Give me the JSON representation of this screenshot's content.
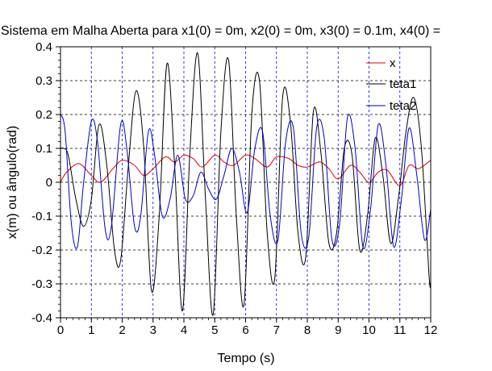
{
  "chart_data": {
    "type": "line",
    "title": "Sistema em Malha Aberta para x1(0) = 0m, x2(0) = 0m, x3(0) = 0.1m, x4(0) =",
    "xlabel": "Tempo (s)",
    "ylabel": "x(m) ou ângulo(rad)",
    "xlim": [
      0,
      12
    ],
    "ylim": [
      -0.4,
      0.4
    ],
    "xticks": [
      "0",
      "1",
      "2",
      "3",
      "4",
      "5",
      "6",
      "7",
      "8",
      "9",
      "10",
      "11",
      "12"
    ],
    "yticks": [
      "0.4",
      "0.3",
      "0.2",
      "0.1",
      "0",
      "-0.1",
      "-0.2",
      "-0.3",
      "-0.4"
    ],
    "grid": true,
    "legend_position": "top-right",
    "series": [
      {
        "name": "x",
        "color": "#dd0000",
        "points": [
          [
            0,
            0
          ],
          [
            0.2,
            0.03
          ],
          [
            0.6,
            0.055
          ],
          [
            1.0,
            0.02
          ],
          [
            1.3,
            0.0
          ],
          [
            1.7,
            0.04
          ],
          [
            2.0,
            0.065
          ],
          [
            2.4,
            0.05
          ],
          [
            2.7,
            0.02
          ],
          [
            3.0,
            0.04
          ],
          [
            3.4,
            0.075
          ],
          [
            3.7,
            0.06
          ],
          [
            4.0,
            0.08
          ],
          [
            4.3,
            0.07
          ],
          [
            4.6,
            0.045
          ],
          [
            5.0,
            0.08
          ],
          [
            5.3,
            0.06
          ],
          [
            5.6,
            0.05
          ],
          [
            6.0,
            0.08
          ],
          [
            6.3,
            0.07
          ],
          [
            6.7,
            0.045
          ],
          [
            7.0,
            0.075
          ],
          [
            7.4,
            0.07
          ],
          [
            7.7,
            0.05
          ],
          [
            8.0,
            0.045
          ],
          [
            8.4,
            0.06
          ],
          [
            8.7,
            0.04
          ],
          [
            9.0,
            0.01
          ],
          [
            9.4,
            0.05
          ],
          [
            9.7,
            0.03
          ],
          [
            10.0,
            0.0
          ],
          [
            10.3,
            0.03
          ],
          [
            10.6,
            0.035
          ],
          [
            11.0,
            -0.01
          ],
          [
            11.3,
            0.05
          ],
          [
            11.6,
            0.04
          ],
          [
            12.0,
            0.065
          ]
        ]
      },
      {
        "name": "teta1",
        "color": "#000000",
        "points": [
          [
            0,
            0.1
          ],
          [
            0.1,
            0.1
          ],
          [
            0.25,
            0.08
          ],
          [
            0.5,
            -0.05
          ],
          [
            0.75,
            -0.13
          ],
          [
            1.0,
            -0.05
          ],
          [
            1.25,
            0.17
          ],
          [
            1.5,
            0.05
          ],
          [
            1.75,
            -0.2
          ],
          [
            1.95,
            -0.23
          ],
          [
            2.2,
            0.05
          ],
          [
            2.45,
            0.27
          ],
          [
            2.7,
            0.1
          ],
          [
            2.95,
            -0.32
          ],
          [
            3.2,
            -0.1
          ],
          [
            3.45,
            0.35
          ],
          [
            3.7,
            0.05
          ],
          [
            3.95,
            -0.38
          ],
          [
            4.2,
            0.1
          ],
          [
            4.45,
            0.38
          ],
          [
            4.7,
            -0.05
          ],
          [
            4.95,
            -0.39
          ],
          [
            5.2,
            0.15
          ],
          [
            5.45,
            0.36
          ],
          [
            5.7,
            -0.1
          ],
          [
            5.95,
            -0.36
          ],
          [
            6.2,
            0.2
          ],
          [
            6.45,
            0.3
          ],
          [
            6.7,
            -0.15
          ],
          [
            6.95,
            -0.28
          ],
          [
            7.2,
            0.25
          ],
          [
            7.45,
            0.18
          ],
          [
            7.7,
            -0.15
          ],
          [
            7.95,
            -0.22
          ],
          [
            8.2,
            0.21
          ],
          [
            8.45,
            0.08
          ],
          [
            8.7,
            -0.18
          ],
          [
            8.95,
            -0.15
          ],
          [
            9.2,
            0.1
          ],
          [
            9.45,
            0.08
          ],
          [
            9.7,
            -0.2
          ],
          [
            9.95,
            -0.1
          ],
          [
            10.2,
            0.13
          ],
          [
            10.45,
            0.02
          ],
          [
            10.7,
            -0.18
          ],
          [
            10.95,
            -0.05
          ],
          [
            11.2,
            0.15
          ],
          [
            11.45,
            0.25
          ],
          [
            11.7,
            0.1
          ],
          [
            11.95,
            -0.28
          ],
          [
            12.0,
            -0.29
          ]
        ]
      },
      {
        "name": "teta2",
        "color": "#0000cc",
        "points": [
          [
            0,
            0.2
          ],
          [
            0.15,
            0.15
          ],
          [
            0.35,
            -0.12
          ],
          [
            0.55,
            -0.19
          ],
          [
            0.75,
            0.0
          ],
          [
            1.0,
            0.18
          ],
          [
            1.2,
            0.12
          ],
          [
            1.45,
            -0.14
          ],
          [
            1.65,
            -0.13
          ],
          [
            1.95,
            0.17
          ],
          [
            2.15,
            0.1
          ],
          [
            2.4,
            -0.13
          ],
          [
            2.6,
            -0.1
          ],
          [
            2.85,
            0.15
          ],
          [
            3.05,
            0.08
          ],
          [
            3.3,
            -0.1
          ],
          [
            3.55,
            -0.05
          ],
          [
            3.8,
            0.08
          ],
          [
            4.05,
            -0.05
          ],
          [
            4.3,
            -0.04
          ],
          [
            4.55,
            0.03
          ],
          [
            4.8,
            -0.02
          ],
          [
            5.05,
            -0.05
          ],
          [
            5.3,
            0.02
          ],
          [
            5.55,
            0.1
          ],
          [
            5.8,
            0.03
          ],
          [
            6.05,
            -0.09
          ],
          [
            6.3,
            0.1
          ],
          [
            6.55,
            0.15
          ],
          [
            6.8,
            -0.1
          ],
          [
            7.05,
            -0.17
          ],
          [
            7.3,
            0.12
          ],
          [
            7.55,
            0.16
          ],
          [
            7.8,
            -0.15
          ],
          [
            8.05,
            -0.16
          ],
          [
            8.3,
            0.16
          ],
          [
            8.55,
            0.13
          ],
          [
            8.8,
            -0.17
          ],
          [
            9.05,
            -0.12
          ],
          [
            9.3,
            0.19
          ],
          [
            9.55,
            0.1
          ],
          [
            9.8,
            -0.19
          ],
          [
            10.05,
            -0.08
          ],
          [
            10.3,
            0.17
          ],
          [
            10.55,
            0.05
          ],
          [
            10.8,
            -0.19
          ],
          [
            11.05,
            -0.05
          ],
          [
            11.3,
            0.16
          ],
          [
            11.55,
            0.02
          ],
          [
            11.8,
            -0.17
          ],
          [
            12.0,
            -0.08
          ]
        ]
      }
    ]
  }
}
